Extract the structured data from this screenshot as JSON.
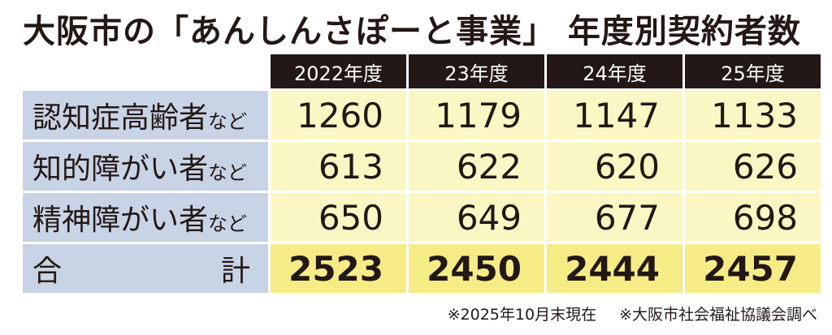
{
  "title": "大阪市の「あんしんさぽーと事業」 年度別契約者数",
  "table": {
    "columns": [
      "2022年度",
      "23年度",
      "24年度",
      "25年度"
    ],
    "rows": [
      {
        "label": "認知症高齢者",
        "suffix": "など",
        "values": [
          1260,
          1179,
          1147,
          1133
        ]
      },
      {
        "label": "知的障がい者",
        "suffix": "など",
        "values": [
          613,
          622,
          620,
          626
        ]
      },
      {
        "label": "精神障がい者",
        "suffix": "など",
        "values": [
          650,
          649,
          677,
          698
        ]
      }
    ],
    "total": {
      "label": "合計",
      "values": [
        2523,
        2450,
        2444,
        2457
      ]
    }
  },
  "notes": [
    "※2025年10月末現在",
    "※大阪市社会福祉協議会調べ"
  ]
}
